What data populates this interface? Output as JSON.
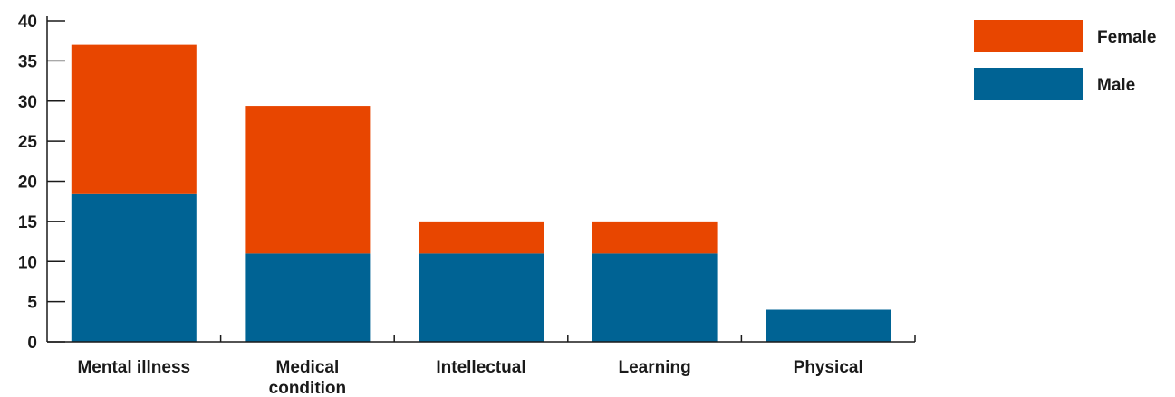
{
  "chart_data": {
    "type": "bar",
    "stacked": true,
    "categories": [
      "Mental illness",
      "Medical condition",
      "Intellectual",
      "Learning",
      "Physical"
    ],
    "category_lines": [
      [
        "Mental illness"
      ],
      [
        "Medical",
        "condition"
      ],
      [
        "Intellectual"
      ],
      [
        "Learning"
      ],
      [
        "Physical"
      ]
    ],
    "series": [
      {
        "name": "Male",
        "color": "#006394",
        "values": [
          18.5,
          11,
          11,
          11,
          4
        ]
      },
      {
        "name": "Female",
        "color": "#e84600",
        "values": [
          18.5,
          18.4,
          4,
          4,
          0
        ]
      }
    ],
    "yticks": [
      0,
      5,
      10,
      15,
      20,
      25,
      30,
      35,
      40
    ],
    "ylim": [
      0,
      40
    ],
    "title": "",
    "xlabel": "",
    "ylabel": "",
    "grid": false,
    "legend": {
      "position": "top-right",
      "order": [
        "Female",
        "Male"
      ]
    }
  }
}
